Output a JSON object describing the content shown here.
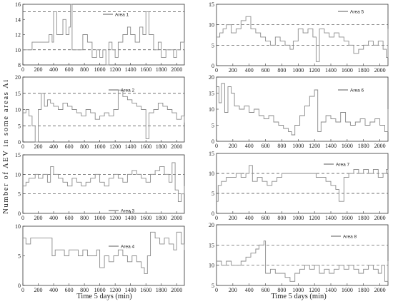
{
  "figure": {
    "ylabel": "Number of AEV in some areas Ai",
    "xlabel": "Time 5 days (min)",
    "colors": {
      "line": "#8a8a8a",
      "dash": "#444444",
      "axis": "#333333"
    }
  },
  "chart_data": [
    {
      "type": "line",
      "legend": "Area 1",
      "xlim": [
        0,
        2100
      ],
      "ylim": [
        8,
        16
      ],
      "yticks": [
        8,
        10,
        12,
        14,
        16
      ],
      "xticks": [
        0,
        200,
        400,
        600,
        800,
        1000,
        1200,
        1400,
        1600,
        1800,
        2000
      ],
      "dashed_levels": [
        10,
        15
      ],
      "series": [
        {
          "name": "Area 1",
          "x": [
            0,
            60,
            120,
            180,
            260,
            340,
            380,
            400,
            440,
            480,
            520,
            560,
            600,
            620,
            640,
            680,
            720,
            780,
            840,
            900,
            960,
            1000,
            1040,
            1080,
            1120,
            1160,
            1200,
            1240,
            1300,
            1360,
            1400,
            1460,
            1520,
            1560,
            1600,
            1640,
            1700,
            1760,
            1800,
            1860,
            1920,
            1960,
            2000,
            2050,
            2100
          ],
          "y": [
            10,
            10,
            11,
            11,
            11,
            12,
            11,
            15,
            12,
            12,
            14,
            12,
            13,
            16,
            10,
            10,
            10,
            12,
            11,
            9,
            10,
            9,
            10,
            8,
            11,
            10,
            9,
            11,
            12,
            13,
            12,
            11,
            13,
            12,
            15,
            12,
            10,
            11,
            9,
            10,
            10,
            9,
            10,
            11,
            10
          ]
        }
      ]
    },
    {
      "type": "line",
      "legend": "Area 2",
      "xlim": [
        0,
        2100
      ],
      "ylim": [
        0,
        20
      ],
      "yticks": [
        0,
        5,
        10,
        15,
        20
      ],
      "xticks": [
        0,
        200,
        400,
        600,
        800,
        1000,
        1200,
        1400,
        1600,
        1800,
        2000
      ],
      "dashed_levels": [
        5,
        15
      ],
      "series": [
        {
          "name": "Area 2",
          "x": [
            0,
            40,
            80,
            120,
            160,
            200,
            240,
            280,
            320,
            360,
            400,
            460,
            520,
            580,
            640,
            700,
            760,
            820,
            880,
            940,
            1000,
            1060,
            1120,
            1180,
            1240,
            1300,
            1360,
            1420,
            1480,
            1540,
            1600,
            1640,
            1700,
            1760,
            1820,
            1880,
            1940,
            2000,
            2060,
            2100
          ],
          "y": [
            9,
            10,
            8,
            5,
            0,
            10,
            15,
            11,
            13,
            12,
            11,
            10,
            12,
            11,
            10,
            9,
            8,
            10,
            9,
            7,
            8,
            9,
            8,
            10,
            16,
            14,
            13,
            12,
            11,
            10,
            1,
            9,
            10,
            12,
            11,
            10,
            9,
            7,
            8,
            6
          ]
        }
      ]
    },
    {
      "type": "line",
      "legend": "Area 3",
      "xlim": [
        0,
        2100
      ],
      "ylim": [
        0,
        15
      ],
      "yticks": [
        0,
        5,
        10,
        15
      ],
      "xticks": [
        0,
        200,
        400,
        600,
        800,
        1000,
        1200,
        1400,
        1600,
        1800,
        2000
      ],
      "dashed_levels": [
        5,
        10
      ],
      "series": [
        {
          "name": "Area 3",
          "x": [
            0,
            40,
            80,
            120,
            160,
            200,
            260,
            320,
            360,
            400,
            460,
            520,
            580,
            640,
            700,
            760,
            820,
            880,
            940,
            1000,
            1060,
            1120,
            1180,
            1240,
            1300,
            1360,
            1420,
            1480,
            1540,
            1600,
            1660,
            1720,
            1780,
            1840,
            1900,
            1940,
            1980,
            2020,
            2060,
            2100
          ],
          "y": [
            7,
            8,
            9,
            9,
            10,
            9,
            10,
            8,
            12,
            10,
            9,
            8,
            7,
            9,
            8,
            7,
            8,
            9,
            10,
            8,
            7,
            9,
            10,
            9,
            8,
            10,
            11,
            10,
            9,
            8,
            10,
            11,
            12,
            10,
            8,
            13,
            6,
            3,
            5,
            7
          ]
        }
      ]
    },
    {
      "type": "line",
      "legend": "Area 4",
      "xlim": [
        0,
        2100
      ],
      "ylim": [
        0,
        10
      ],
      "yticks": [
        0,
        5,
        10
      ],
      "xticks": [
        0,
        200,
        400,
        600,
        800,
        1000,
        1200,
        1400,
        1600,
        1800,
        2000
      ],
      "dashed_levels": [],
      "series": [
        {
          "name": "Area 4",
          "x": [
            0,
            40,
            100,
            160,
            220,
            280,
            340,
            380,
            420,
            480,
            540,
            600,
            660,
            720,
            780,
            840,
            900,
            960,
            1000,
            1060,
            1120,
            1180,
            1240,
            1300,
            1360,
            1420,
            1480,
            1540,
            1580,
            1620,
            1660,
            1720,
            1780,
            1840,
            1900,
            1960,
            2000,
            2060,
            2100
          ],
          "y": [
            8,
            7,
            8,
            8,
            8,
            8,
            8,
            5,
            6,
            6,
            5,
            6,
            6,
            5,
            6,
            5,
            5,
            6,
            3,
            5,
            4,
            5,
            6,
            5,
            4,
            5,
            4,
            3,
            2,
            5,
            9,
            8,
            7,
            8,
            7,
            6,
            9,
            7,
            6
          ]
        }
      ]
    },
    {
      "type": "line",
      "legend": "Area 5",
      "xlim": [
        0,
        2100
      ],
      "ylim": [
        0,
        15
      ],
      "yticks": [
        0,
        5,
        10,
        15
      ],
      "xticks": [
        0,
        200,
        400,
        600,
        800,
        1000,
        1200,
        1400,
        1600,
        1800,
        2000
      ],
      "dashed_levels": [
        5,
        10
      ],
      "series": [
        {
          "name": "Area 5",
          "x": [
            0,
            40,
            80,
            120,
            180,
            240,
            300,
            360,
            420,
            480,
            540,
            600,
            660,
            720,
            780,
            840,
            900,
            940,
            1000,
            1060,
            1120,
            1180,
            1220,
            1260,
            1320,
            1380,
            1440,
            1500,
            1560,
            1620,
            1680,
            1740,
            1800,
            1860,
            1920,
            1980,
            2040,
            2080,
            2100
          ],
          "y": [
            7,
            8,
            9,
            10,
            8,
            9,
            11,
            12,
            9,
            8,
            7,
            6,
            5,
            7,
            6,
            5,
            4,
            6,
            9,
            8,
            9,
            7,
            1,
            9,
            8,
            7,
            8,
            7,
            6,
            5,
            3,
            4,
            5,
            6,
            5,
            6,
            4,
            2,
            9
          ]
        }
      ]
    },
    {
      "type": "line",
      "legend": "Area 6",
      "xlim": [
        0,
        2100
      ],
      "ylim": [
        0,
        20
      ],
      "yticks": [
        0,
        5,
        10,
        15,
        20
      ],
      "xticks": [
        0,
        200,
        400,
        600,
        800,
        1000,
        1200,
        1400,
        1600,
        1800,
        2000
      ],
      "dashed_levels": [],
      "series": [
        {
          "name": "Area 6",
          "x": [
            0,
            30,
            60,
            100,
            140,
            180,
            220,
            280,
            340,
            400,
            460,
            520,
            580,
            640,
            700,
            760,
            820,
            880,
            920,
            960,
            1020,
            1080,
            1140,
            1200,
            1240,
            1280,
            1340,
            1400,
            1460,
            1520,
            1580,
            1640,
            1700,
            1760,
            1820,
            1880,
            1940,
            2000,
            2060,
            2100
          ],
          "y": [
            17,
            12,
            18,
            9,
            17,
            15,
            11,
            10,
            11,
            9,
            10,
            8,
            7,
            8,
            6,
            5,
            4,
            3,
            2,
            5,
            8,
            11,
            14,
            16,
            3,
            6,
            8,
            7,
            6,
            9,
            6,
            5,
            6,
            7,
            5,
            6,
            7,
            5,
            3,
            10
          ]
        }
      ]
    },
    {
      "type": "line",
      "legend": "Area 7",
      "xlim": [
        0,
        2100
      ],
      "ylim": [
        0,
        15
      ],
      "yticks": [
        0,
        5,
        10,
        15
      ],
      "xticks": [
        0,
        200,
        400,
        600,
        800,
        1000,
        1200,
        1400,
        1600,
        1800,
        2000
      ],
      "dashed_levels": [
        5,
        10
      ],
      "series": [
        {
          "name": "Area 7",
          "x": [
            0,
            20,
            60,
            120,
            180,
            240,
            300,
            360,
            400,
            440,
            500,
            560,
            620,
            680,
            740,
            800,
            860,
            920,
            980,
            1040,
            1100,
            1160,
            1220,
            1280,
            1340,
            1400,
            1460,
            1500,
            1560,
            1620,
            1680,
            1740,
            1800,
            1860,
            1920,
            1980,
            2040,
            2080,
            2100
          ],
          "y": [
            3,
            7,
            8,
            9,
            9,
            10,
            9,
            10,
            12,
            8,
            9,
            8,
            7,
            8,
            9,
            10,
            10,
            10,
            10,
            10,
            10,
            10,
            9,
            9,
            8,
            7,
            6,
            3,
            9,
            10,
            11,
            10,
            11,
            10,
            11,
            9,
            10,
            11,
            10
          ]
        }
      ]
    },
    {
      "type": "line",
      "legend": "Area 8",
      "xlim": [
        0,
        2100
      ],
      "ylim": [
        5,
        20
      ],
      "yticks": [
        5,
        10,
        15,
        20
      ],
      "xticks": [
        0,
        200,
        400,
        600,
        800,
        1000,
        1200,
        1400,
        1600,
        1800,
        2000
      ],
      "dashed_levels": [
        10,
        15
      ],
      "series": [
        {
          "name": "Area 8",
          "x": [
            0,
            60,
            120,
            180,
            240,
            300,
            360,
            420,
            480,
            520,
            560,
            580,
            600,
            660,
            720,
            780,
            840,
            900,
            960,
            1020,
            1080,
            1140,
            1200,
            1260,
            1320,
            1380,
            1440,
            1500,
            1560,
            1620,
            1680,
            1740,
            1800,
            1860,
            1920,
            1980,
            2020,
            2060,
            2100
          ],
          "y": [
            11,
            10,
            11,
            10,
            10,
            11,
            12,
            13,
            14,
            15,
            15,
            16,
            8,
            9,
            8,
            8,
            7,
            6,
            8,
            9,
            10,
            9,
            10,
            8,
            9,
            8,
            9,
            10,
            9,
            10,
            9,
            8,
            9,
            10,
            9,
            8,
            10,
            6,
            11
          ]
        }
      ]
    }
  ]
}
